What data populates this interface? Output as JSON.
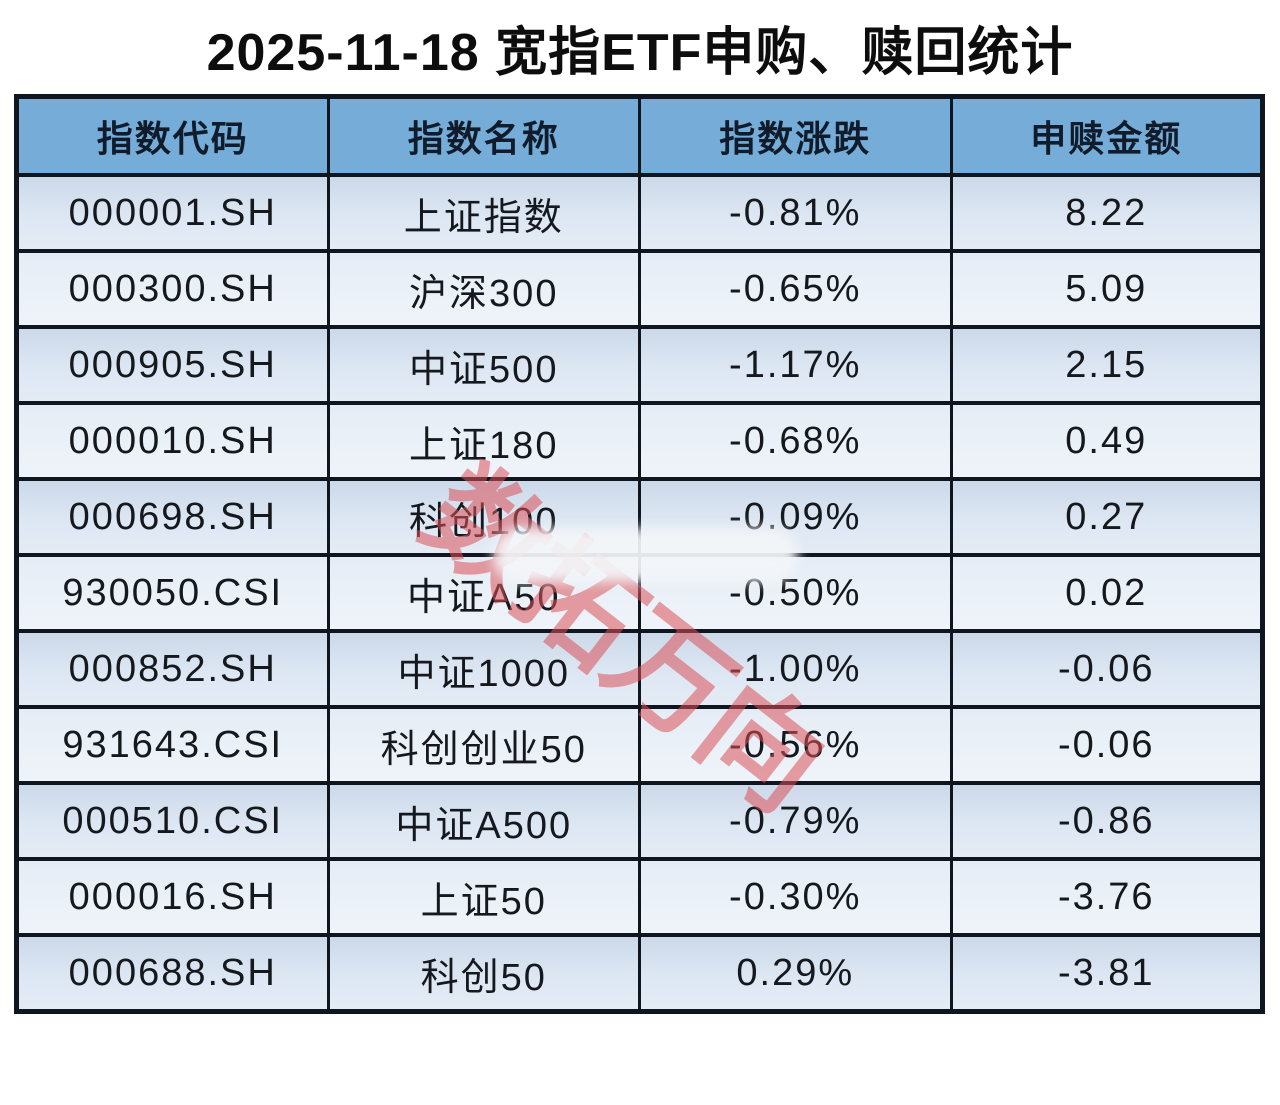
{
  "title": "2025-11-18 宽指ETF申购、赎回统计",
  "watermark": {
    "text": "数拓万向",
    "color": "#db5057"
  },
  "colors": {
    "header_bg": "#75add8",
    "row_odd_bg": "#d5e1ef",
    "row_even_bg": "#eaf0f8",
    "border": "#10161f",
    "text": "#15191e",
    "watermark": "#db5057"
  },
  "chart_data": {
    "type": "table",
    "title": "2025-11-18 宽指ETF申购、赎回统计",
    "columns": [
      "指数代码",
      "指数名称",
      "指数涨跌",
      "申赎金额"
    ],
    "column_keys": [
      "code",
      "name",
      "change",
      "amount"
    ],
    "rows": [
      [
        "000001.SH",
        "上证指数",
        "-0.81%",
        "8.22"
      ],
      [
        "000300.SH",
        "沪深300",
        "-0.65%",
        "5.09"
      ],
      [
        "000905.SH",
        "中证500",
        "-1.17%",
        "2.15"
      ],
      [
        "000010.SH",
        "上证180",
        "-0.68%",
        "0.49"
      ],
      [
        "000698.SH",
        "科创100",
        "-0.09%",
        "0.27"
      ],
      [
        "930050.CSI",
        "中证A50",
        "-0.50%",
        "0.02"
      ],
      [
        "000852.SH",
        "中证1000",
        "-1.00%",
        "-0.06"
      ],
      [
        "931643.CSI",
        "科创创业50",
        "-0.56%",
        "-0.06"
      ],
      [
        "000510.CSI",
        "中证A500",
        "-0.79%",
        "-0.86"
      ],
      [
        "000016.SH",
        "上证50",
        "-0.30%",
        "-3.76"
      ],
      [
        "000688.SH",
        "科创50",
        "0.29%",
        "-3.81"
      ]
    ]
  }
}
